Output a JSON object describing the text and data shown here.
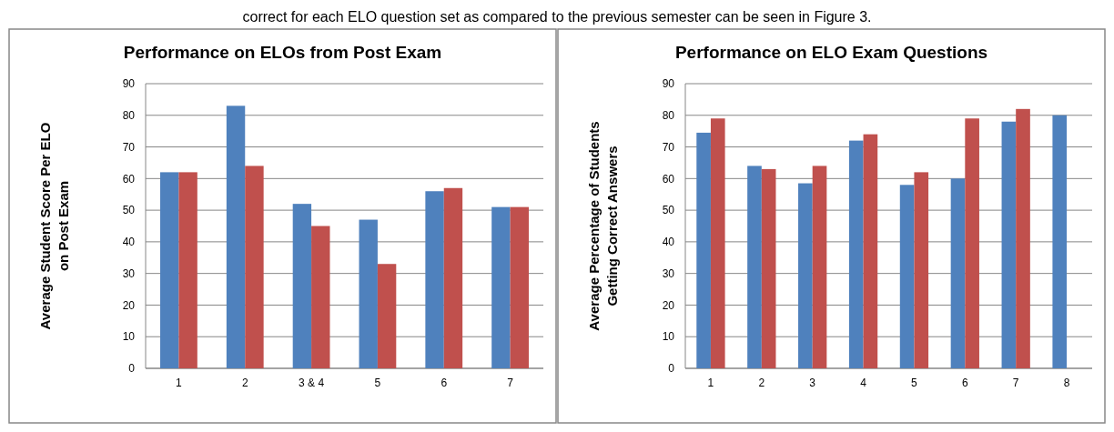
{
  "chart_data": [
    {
      "type": "bar",
      "title": "Performance on ELOs from Post Exam",
      "ylabel": "Average Student Score Per ELO on Post Exam",
      "categories": [
        "1",
        "2",
        "3 & 4",
        "5",
        "6",
        "7"
      ],
      "series": [
        {
          "color": "#4f81bd",
          "values": [
            62,
            83,
            52,
            47,
            56,
            51
          ]
        },
        {
          "color": "#c0504d",
          "values": [
            62,
            64,
            45,
            33,
            57,
            51
          ]
        }
      ],
      "ylim": [
        0,
        90
      ],
      "yticks": [
        0,
        10,
        20,
        30,
        40,
        50,
        60,
        70,
        80,
        90
      ],
      "grid": "y",
      "annotations": [
        "correct for each ELO question set as compared to the previous semester can be seen in Figure 3."
      ]
    },
    {
      "type": "bar",
      "title": "Performance on ELO Exam Questions",
      "ylabel": "Average Percentage of Students Getting Correct Answers",
      "categories": [
        "1",
        "2",
        "3",
        "4",
        "5",
        "6",
        "7",
        "8"
      ],
      "series": [
        {
          "color": "#4f81bd",
          "values": [
            74.5,
            64,
            58.5,
            72,
            58,
            60,
            78,
            80
          ]
        },
        {
          "color": "#c0504d",
          "values": [
            79,
            63,
            64,
            74,
            62,
            79,
            82,
            null
          ]
        }
      ],
      "ylim": [
        0,
        90
      ],
      "yticks": [
        0,
        10,
        20,
        30,
        40,
        50,
        60,
        70,
        80,
        90
      ],
      "grid": "y"
    }
  ]
}
